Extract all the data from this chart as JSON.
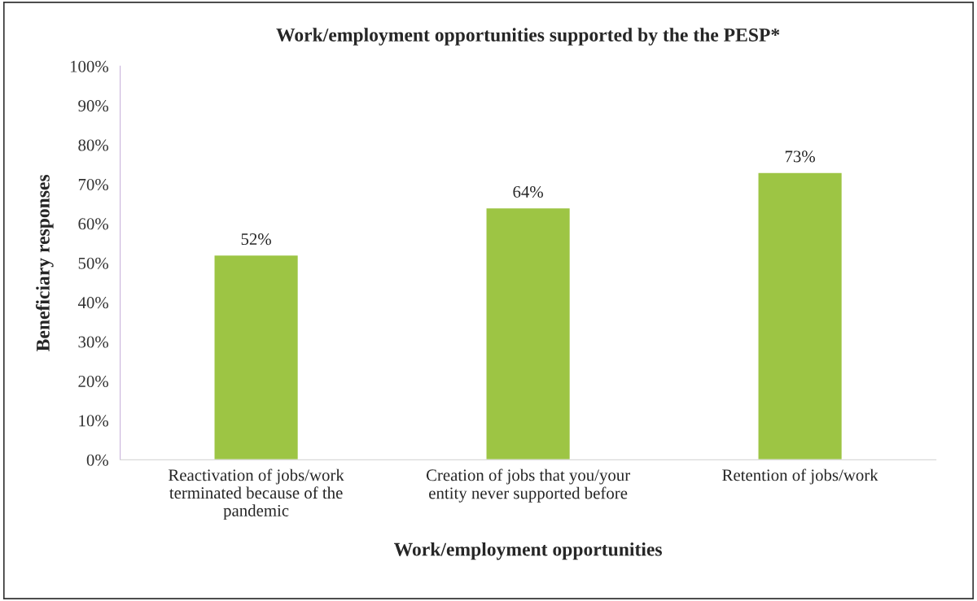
{
  "chart_data": {
    "type": "bar",
    "title": "Work/employment opportunities supported by the the PESP*",
    "xlabel": "Work/employment opportunities",
    "ylabel": "Beneficiary responses",
    "categories": [
      "Reactivation of jobs/work\nterminated because of the\npandemic",
      "Creation of jobs that you/your\nentity never supported before",
      "Retention of jobs/work"
    ],
    "values": [
      52,
      64,
      73
    ],
    "value_labels": [
      "52%",
      "64%",
      "73%"
    ],
    "color": "#9dc544",
    "ylim": [
      0,
      100
    ],
    "yticks": [
      {
        "value": 0,
        "label": "0%"
      },
      {
        "value": 10,
        "label": "10%"
      },
      {
        "value": 20,
        "label": "20%"
      },
      {
        "value": 30,
        "label": "30%"
      },
      {
        "value": 40,
        "label": "40%"
      },
      {
        "value": 50,
        "label": "50%"
      },
      {
        "value": 60,
        "label": "60%"
      },
      {
        "value": 70,
        "label": "70%"
      },
      {
        "value": 80,
        "label": "80%"
      },
      {
        "value": 90,
        "label": "90%"
      },
      {
        "value": 100,
        "label": "100%"
      }
    ],
    "grid": false,
    "legend": false
  }
}
